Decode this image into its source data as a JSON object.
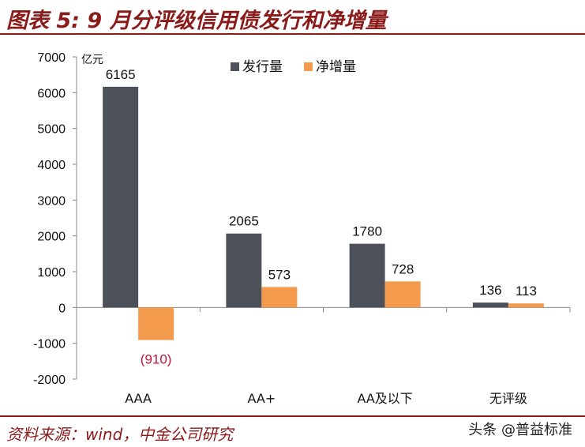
{
  "header": {
    "title": "图表 5: 9 月分评级信用债发行和净增量"
  },
  "footer": {
    "source": "资料来源：wind，中金公司研究",
    "watermark": "头条 @普益标准"
  },
  "colors": {
    "issuance": "#4d5159",
    "net": "#f39a4c",
    "title": "#8b1a1a",
    "negative_label": "#c0143c"
  },
  "chart_data": {
    "type": "bar",
    "title": "",
    "ylabel": "亿元",
    "xlabel": "",
    "ylim": [
      -2000,
      7000
    ],
    "yticks": [
      7000,
      6000,
      5000,
      4000,
      3000,
      2000,
      1000,
      0,
      -1000,
      -2000
    ],
    "categories": [
      "AAA",
      "AA+",
      "AA及以下",
      "无评级"
    ],
    "series": [
      {
        "name": "发行量",
        "values": [
          6165,
          2065,
          1780,
          136
        ],
        "labels": [
          "6165",
          "2065",
          "1780",
          "136"
        ]
      },
      {
        "name": "净增量",
        "values": [
          -910,
          573,
          728,
          113
        ],
        "labels": [
          "(910)",
          "573",
          "728",
          "113"
        ]
      }
    ],
    "legend": "top-center",
    "grid": false
  }
}
